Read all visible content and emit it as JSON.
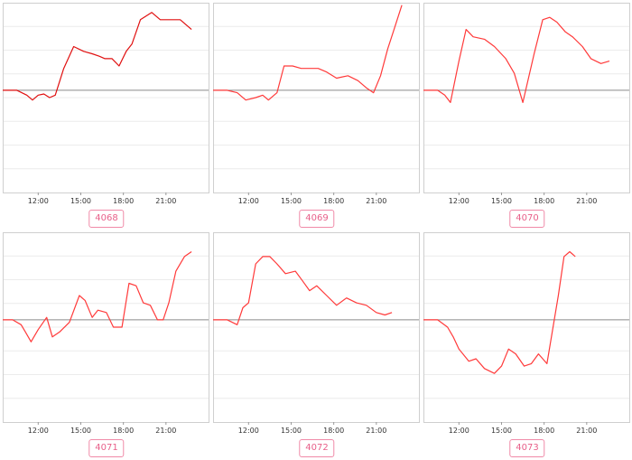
{
  "colors": {
    "line": "#ff3a3a",
    "line_dark": "#e01010",
    "frame": "#cfcfcf",
    "grid": "#ececec",
    "baseline": "#8a8a8a",
    "badge": "#e8608a"
  },
  "chart_data": [
    {
      "type": "line",
      "badge": "4068",
      "x_ticks": [
        "12:00",
        "15:00",
        "18:00",
        "21:00"
      ],
      "xlim": [
        9.5,
        24.0
      ],
      "baseline": 0,
      "ylim": [
        -4.2,
        3.6
      ],
      "x": [
        9.5,
        10.5,
        11.2,
        11.6,
        12.0,
        12.4,
        12.8,
        13.2,
        13.8,
        14.5,
        15.2,
        15.8,
        16.3,
        16.7,
        17.2,
        17.7,
        18.2,
        18.6,
        19.2,
        20.0,
        20.6,
        21.2,
        22.0,
        22.8
      ],
      "y": [
        0.0,
        0.0,
        -0.2,
        -0.4,
        -0.2,
        -0.15,
        -0.3,
        -0.2,
        0.9,
        1.8,
        1.6,
        1.5,
        1.4,
        1.3,
        1.3,
        1.0,
        1.6,
        1.9,
        2.9,
        3.2,
        2.9,
        2.9,
        2.9,
        2.5
      ]
    },
    {
      "type": "line",
      "badge": "4069",
      "x_ticks": [
        "12:00",
        "15:00",
        "18:00",
        "21:00"
      ],
      "xlim": [
        9.5,
        24.0
      ],
      "baseline": 0,
      "ylim": [
        -4.2,
        3.6
      ],
      "x": [
        9.5,
        10.5,
        11.2,
        11.8,
        12.5,
        13.0,
        13.4,
        14.0,
        14.5,
        15.1,
        15.7,
        16.3,
        16.9,
        17.5,
        18.2,
        19.0,
        19.7,
        20.3,
        20.8,
        21.3,
        21.8,
        22.3,
        22.8
      ],
      "y": [
        0.0,
        0.0,
        -0.1,
        -0.4,
        -0.3,
        -0.2,
        -0.4,
        -0.1,
        1.0,
        1.0,
        0.9,
        0.9,
        0.9,
        0.75,
        0.5,
        0.6,
        0.4,
        0.1,
        -0.1,
        0.6,
        1.7,
        2.6,
        3.5
      ]
    },
    {
      "type": "line",
      "badge": "4070",
      "x_ticks": [
        "12:00",
        "15:00",
        "18:00",
        "21:00"
      ],
      "xlim": [
        9.5,
        24.0
      ],
      "baseline": 0,
      "ylim": [
        -4.2,
        3.6
      ],
      "x": [
        9.5,
        10.5,
        11.0,
        11.4,
        12.0,
        12.5,
        13.0,
        13.8,
        14.5,
        15.3,
        15.9,
        16.5,
        17.3,
        17.9,
        18.4,
        18.9,
        19.5,
        20.0,
        20.7,
        21.3,
        22.0,
        22.6
      ],
      "y": [
        0.0,
        0.0,
        -0.2,
        -0.5,
        1.2,
        2.5,
        2.2,
        2.1,
        1.8,
        1.3,
        0.7,
        -0.5,
        1.5,
        2.9,
        3.0,
        2.8,
        2.4,
        2.2,
        1.8,
        1.3,
        1.1,
        1.2
      ]
    },
    {
      "type": "line",
      "badge": "4071",
      "x_ticks": [
        "12:00",
        "15:00",
        "18:00",
        "21:00"
      ],
      "xlim": [
        9.5,
        24.0
      ],
      "baseline": 0,
      "ylim": [
        -4.2,
        3.6
      ],
      "x": [
        9.5,
        10.2,
        10.8,
        11.1,
        11.5,
        12.0,
        12.6,
        13.0,
        13.5,
        14.2,
        14.9,
        15.3,
        15.8,
        16.2,
        16.8,
        17.3,
        17.9,
        18.4,
        18.9,
        19.4,
        19.9,
        20.4,
        20.8,
        21.2,
        21.7,
        22.3,
        22.8
      ],
      "y": [
        0.0,
        0.0,
        -0.2,
        -0.5,
        -0.9,
        -0.4,
        0.1,
        -0.7,
        -0.5,
        -0.1,
        1.0,
        0.8,
        0.1,
        0.4,
        0.3,
        -0.3,
        -0.3,
        1.5,
        1.4,
        0.7,
        0.6,
        0.0,
        0.0,
        0.7,
        2.0,
        2.6,
        2.8
      ]
    },
    {
      "type": "line",
      "badge": "4072",
      "x_ticks": [
        "12:00",
        "15:00",
        "18:00",
        "21:00"
      ],
      "xlim": [
        9.5,
        24.0
      ],
      "baseline": 0,
      "ylim": [
        -4.2,
        3.6
      ],
      "x": [
        9.5,
        10.5,
        11.2,
        11.6,
        12.0,
        12.5,
        13.0,
        13.5,
        14.0,
        14.6,
        15.3,
        15.8,
        16.3,
        16.8,
        17.5,
        18.2,
        18.9,
        19.6,
        20.3,
        21.0,
        21.6,
        22.1
      ],
      "y": [
        0.0,
        0.0,
        -0.2,
        0.5,
        0.7,
        2.3,
        2.6,
        2.6,
        2.3,
        1.9,
        2.0,
        1.6,
        1.2,
        1.4,
        1.0,
        0.6,
        0.9,
        0.7,
        0.6,
        0.3,
        0.2,
        0.3
      ]
    },
    {
      "type": "line",
      "badge": "4073",
      "x_ticks": [
        "12:00",
        "15:00",
        "18:00",
        "21:00"
      ],
      "xlim": [
        9.5,
        24.0
      ],
      "baseline": 0,
      "ylim": [
        -4.2,
        3.6
      ],
      "x": [
        9.5,
        10.5,
        11.2,
        11.6,
        12.0,
        12.7,
        13.2,
        13.8,
        14.5,
        15.0,
        15.5,
        16.0,
        16.6,
        17.1,
        17.6,
        18.2,
        19.0,
        19.4,
        19.8,
        20.2
      ],
      "y": [
        0.0,
        0.0,
        -0.3,
        -0.7,
        -1.2,
        -1.7,
        -1.6,
        -2.0,
        -2.2,
        -1.9,
        -1.2,
        -1.4,
        -1.9,
        -1.8,
        -1.4,
        -1.8,
        1.0,
        2.6,
        2.8,
        2.6
      ]
    }
  ]
}
